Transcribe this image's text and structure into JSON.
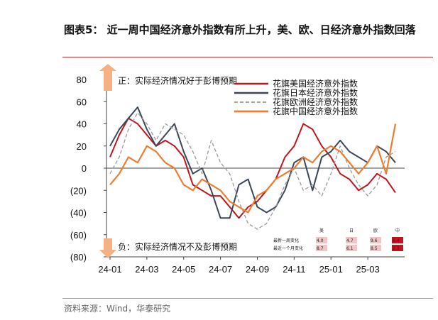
{
  "header": {
    "title": "图表5： 近一周中国经济意外指数有所上升，美、欧、日经济意外指数回落"
  },
  "footer": {
    "source": "资料来源：Wind，华泰研究"
  },
  "annotations": {
    "positive": "正：实际经济情况好于彭博预期",
    "negative": "负：实际经济情况不及彭博预期"
  },
  "mini_table": {
    "columns": [
      "美",
      "日",
      "欧",
      "中"
    ],
    "rows": [
      {
        "label": "最新一周变化",
        "values": [
          "4.0",
          "4.7",
          "9.6",
          "6.4"
        ]
      },
      {
        "label": "最近一个月变化",
        "values": [
          "8.7",
          "6.1",
          "8.5",
          "2.3"
        ]
      }
    ]
  },
  "colors": {
    "us": "#c0151e",
    "jp": "#3b4656",
    "eu": "#9a9a9a",
    "cn": "#ed7d31",
    "arrow": "#f4b183",
    "table_red": "#c0151e"
  },
  "chart_data": {
    "type": "line",
    "title": "",
    "xlabel": "",
    "ylabel": "",
    "ylim": [
      -80,
      80
    ],
    "yticks": [
      80,
      60,
      40,
      20,
      0,
      -20,
      -40,
      -60,
      -80
    ],
    "ytick_labels": [
      "80",
      "60",
      "40",
      "20",
      "0",
      "(20)",
      "(40)",
      "(60)",
      "(80)"
    ],
    "xlim": [
      "2024-01",
      "2025-04.8"
    ],
    "xticks": [
      "24-01",
      "24-03",
      "24-05",
      "24-07",
      "24-09",
      "24-11",
      "25-01",
      "25-03"
    ],
    "grid": false,
    "legend_position": "top-right",
    "x": [
      "24-01",
      "24-01.5",
      "24-02",
      "24-02.5",
      "24-03",
      "24-03.5",
      "24-04",
      "24-04.5",
      "24-05",
      "24-05.5",
      "24-06",
      "24-06.5",
      "24-07",
      "24-07.5",
      "24-08",
      "24-08.5",
      "24-09",
      "24-09.5",
      "24-10",
      "24-10.5",
      "24-11",
      "24-11.5",
      "24-12",
      "24-12.5",
      "25-01",
      "25-01.5",
      "25-02",
      "25-02.5",
      "25-03",
      "25-03.5",
      "25-04",
      "25-04.5"
    ],
    "series": [
      {
        "name": "花旗美国经济意外指数",
        "key": "us",
        "values": [
          10,
          30,
          45,
          40,
          30,
          20,
          25,
          20,
          10,
          -15,
          -20,
          -25,
          -25,
          -35,
          -45,
          -35,
          -30,
          -20,
          -10,
          10,
          20,
          40,
          35,
          20,
          10,
          -5,
          -10,
          -20,
          -15,
          -5,
          -10,
          -22
        ]
      },
      {
        "name": "花旗日本经济意外指数",
        "key": "jp",
        "values": [
          20,
          35,
          45,
          55,
          35,
          20,
          30,
          40,
          15,
          -5,
          0,
          -20,
          -45,
          -45,
          -15,
          -10,
          -35,
          -40,
          -35,
          -20,
          5,
          10,
          -20,
          10,
          15,
          25,
          15,
          10,
          5,
          20,
          15,
          5
        ]
      },
      {
        "name": "花旗欧洲经济意外指数",
        "key": "eu",
        "values": [
          -5,
          10,
          35,
          50,
          40,
          25,
          40,
          35,
          30,
          15,
          -5,
          25,
          5,
          -5,
          -30,
          -50,
          -55,
          -50,
          -35,
          -15,
          0,
          -20,
          -15,
          -25,
          -5,
          20,
          0,
          -15,
          -25,
          -15,
          10,
          15
        ]
      },
      {
        "name": "花旗中国经济意外指数",
        "key": "cn",
        "values": [
          -15,
          -5,
          10,
          5,
          20,
          15,
          5,
          0,
          -15,
          -20,
          -10,
          -15,
          -20,
          -30,
          -35,
          -40,
          -25,
          -20,
          -10,
          -5,
          0,
          10,
          5,
          15,
          20,
          15,
          5,
          -5,
          5,
          20,
          -5,
          40
        ]
      }
    ]
  }
}
